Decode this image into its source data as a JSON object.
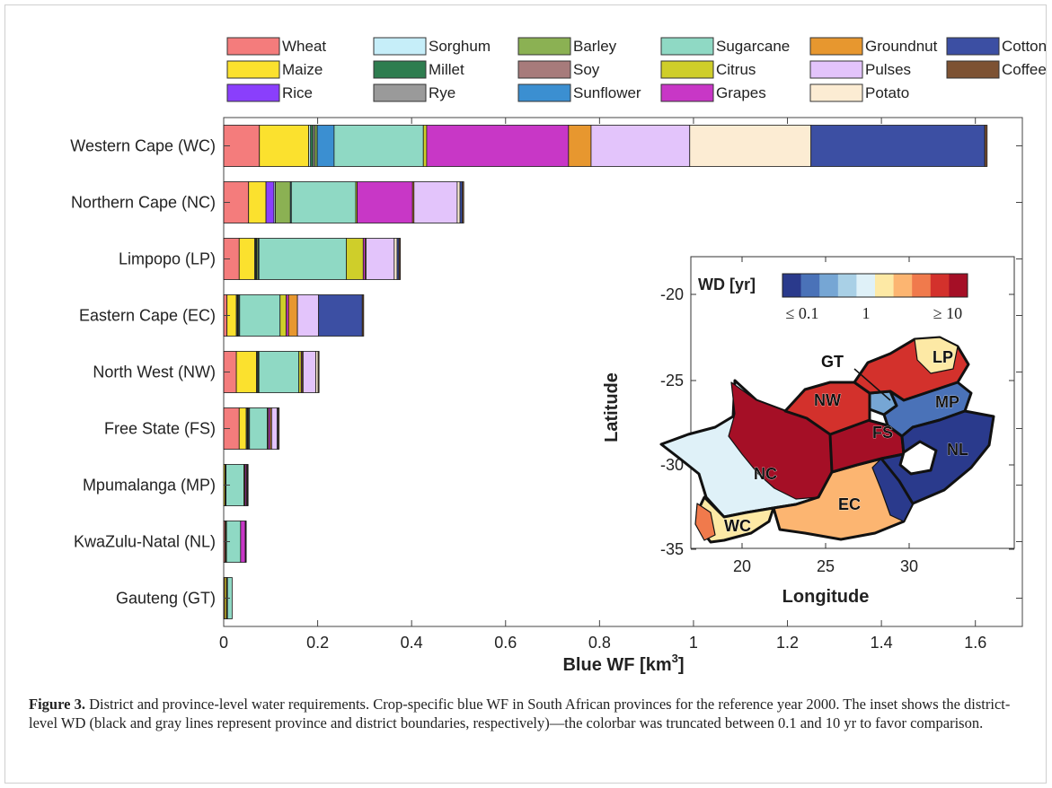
{
  "chart_data": {
    "type": "bar",
    "orientation": "horizontal",
    "stacked": true,
    "categories": [
      "Western Cape (WC)",
      "Northern Cape (NC)",
      "Limpopo (LP)",
      "Eastern Cape (EC)",
      "North West (NW)",
      "Free State (FS)",
      "Mpumalanga (MP)",
      "KwaZulu-Natal (NL)",
      "Gauteng (GT)"
    ],
    "xlabel": "Blue WF [km",
    "xlabel_sup": "3",
    "xlabel_end": "]",
    "xlim": [
      0,
      1.7
    ],
    "xticks": [
      "0",
      "0.2",
      "0.4",
      "0.6",
      "0.8",
      "1",
      "1.2",
      "1.4",
      "1.6"
    ],
    "grid": false,
    "legend_position": "top",
    "series": [
      {
        "name": "Wheat",
        "color": "#f47c7c",
        "values": [
          0.076,
          0.053,
          0.033,
          0.007,
          0.027,
          0.033,
          0.0,
          0.003,
          0.002
        ]
      },
      {
        "name": "Maize",
        "color": "#fbe12e",
        "values": [
          0.105,
          0.037,
          0.033,
          0.02,
          0.043,
          0.015,
          0.003,
          0.002,
          0.004
        ]
      },
      {
        "name": "Rice",
        "color": "#8a3ffc",
        "values": [
          0.0,
          0.017,
          0.0,
          0.0,
          0.0,
          0.0,
          0.0,
          0.0,
          0.0
        ]
      },
      {
        "name": "Sorghum",
        "color": "#c6eef9",
        "values": [
          0.004,
          0.003,
          0.002,
          0.002,
          0.002,
          0.002,
          0.001,
          0.001,
          0.001
        ]
      },
      {
        "name": "Millet",
        "color": "#2e7d4f",
        "values": [
          0.005,
          0.0,
          0.002,
          0.001,
          0.002,
          0.001,
          0.0,
          0.0,
          0.001
        ]
      },
      {
        "name": "Rye",
        "color": "#9a9a9a",
        "values": [
          0.004,
          0.0,
          0.0,
          0.0,
          0.0,
          0.0,
          0.0,
          0.0,
          0.0
        ]
      },
      {
        "name": "Barley",
        "color": "#8bb153",
        "values": [
          0.005,
          0.032,
          0.003,
          0.002,
          0.0,
          0.0,
          0.0,
          0.0,
          0.0
        ]
      },
      {
        "name": "Soy",
        "color": "#a77b7b",
        "values": [
          0.0,
          0.0,
          0.0,
          0.0,
          0.0,
          0.002,
          0.001,
          0.0,
          0.0
        ]
      },
      {
        "name": "Sunflower",
        "color": "#3b8fd1",
        "values": [
          0.036,
          0.002,
          0.002,
          0.002,
          0.001,
          0.002,
          0.0,
          0.0,
          0.0
        ]
      },
      {
        "name": "Sugarcane",
        "color": "#8fd9c4",
        "values": [
          0.19,
          0.137,
          0.186,
          0.086,
          0.085,
          0.038,
          0.038,
          0.03,
          0.01
        ]
      },
      {
        "name": "Citrus",
        "color": "#cfce2a",
        "values": [
          0.007,
          0.003,
          0.036,
          0.013,
          0.005,
          0.002,
          0.002,
          0.0,
          0.0
        ]
      },
      {
        "name": "Grapes",
        "color": "#c837c6",
        "values": [
          0.302,
          0.118,
          0.004,
          0.005,
          0.002,
          0.004,
          0.003,
          0.01,
          0.0
        ]
      },
      {
        "name": "Groundnut",
        "color": "#e7972f",
        "values": [
          0.048,
          0.003,
          0.002,
          0.019,
          0.002,
          0.003,
          0.002,
          0.0,
          0.0
        ]
      },
      {
        "name": "Pulses",
        "color": "#e3c4fb",
        "values": [
          0.21,
          0.092,
          0.06,
          0.045,
          0.027,
          0.012,
          0.001,
          0.001,
          0.0
        ]
      },
      {
        "name": "Potato",
        "color": "#fcecd3",
        "values": [
          0.258,
          0.006,
          0.006,
          0.0,
          0.005,
          0.002,
          0.0,
          0.0,
          0.0
        ]
      },
      {
        "name": "Cotton",
        "color": "#3c4fa3",
        "values": [
          0.37,
          0.005,
          0.004,
          0.093,
          0.0,
          0.0,
          0.0,
          0.0,
          0.0
        ]
      },
      {
        "name": "Coffee",
        "color": "#7d5233",
        "values": [
          0.005,
          0.003,
          0.003,
          0.003,
          0.002,
          0.002,
          0.001,
          0.001,
          0.0
        ]
      }
    ],
    "inset": {
      "type": "map",
      "xlabel": "Longitude",
      "ylabel": "Latitude",
      "xticks": [
        "20",
        "25",
        "30"
      ],
      "yticks": [
        "-20",
        "-25",
        "-30",
        "-35"
      ],
      "colorbar_title": "WD [yr]",
      "colorbar_colors": [
        "#2a3a8c",
        "#4a72b8",
        "#76a6d4",
        "#a9d0e6",
        "#dff1f8",
        "#fde9a5",
        "#fcb571",
        "#f07a4c",
        "#d3312c",
        "#a50f26"
      ],
      "colorbar_labels": [
        "≤ 0.1",
        "1",
        "≥ 10"
      ],
      "region_labels": [
        "GT",
        "LP",
        "MP",
        "NW",
        "FS",
        "NL",
        "NC",
        "EC",
        "WC"
      ]
    }
  },
  "caption": {
    "label": "Figure 3.",
    "text": " District and province-level water requirements. Crop-specific blue WF in South African provinces for the reference year 2000. The inset shows the district-level WD (black and gray lines represent province and district boundaries, respectively)—the colorbar was truncated between 0.1 and 10 yr to favor comparison."
  }
}
